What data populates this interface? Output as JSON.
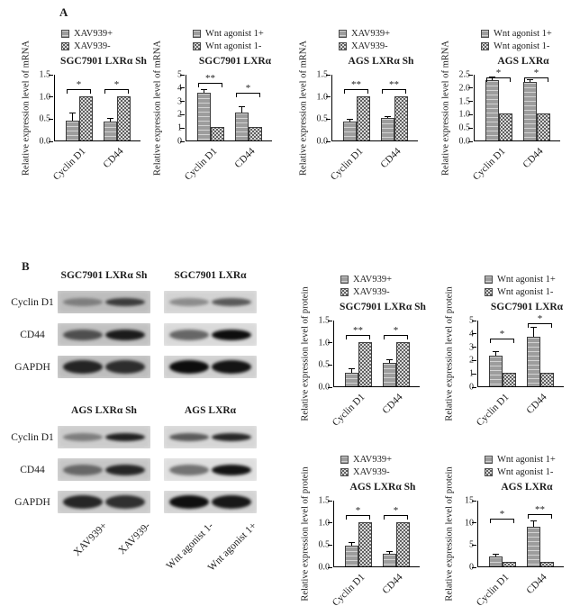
{
  "panels": {
    "a_label": "A",
    "b_label": "B"
  },
  "colors": {
    "series1_fill": "#9d9d9d",
    "series2_fill": "#e9e9e9",
    "bar_border": "#3c3c3c",
    "axis": "#000000",
    "background": "#ffffff"
  },
  "chart_data": [
    {
      "id": "a-sgc7901-sh-mrna",
      "panel": "A",
      "type": "bar",
      "title": "SGC7901 LXRα Sh",
      "ylabel": "Relative expression level of mRNA",
      "legend": [
        "XAV939+",
        "XAV939-"
      ],
      "categories": [
        "Cyclin D1",
        "CD44"
      ],
      "series": [
        {
          "name": "XAV939+",
          "values": [
            0.45,
            0.42
          ],
          "errors": [
            0.15,
            0.06
          ]
        },
        {
          "name": "XAV939-",
          "values": [
            1.0,
            1.0
          ],
          "errors": [
            0,
            0
          ]
        }
      ],
      "ticks": [
        "0.0",
        "0.5",
        "1.0",
        "1.5"
      ],
      "ylim": [
        0,
        1.5
      ],
      "significance": [
        "*",
        "*"
      ]
    },
    {
      "id": "a-sgc7901-mrna",
      "panel": "A",
      "type": "bar",
      "title": "SGC7901 LXRα",
      "ylabel": "Relative expression level of mRNA",
      "legend": [
        "Wnt agonist 1+",
        "Wnt agonist 1-"
      ],
      "categories": [
        "Cyclin D1",
        "CD44"
      ],
      "series": [
        {
          "name": "Wnt agonist 1+",
          "values": [
            3.6,
            2.1
          ],
          "errors": [
            0.2,
            0.4
          ]
        },
        {
          "name": "Wnt agonist 1-",
          "values": [
            1.0,
            1.0
          ],
          "errors": [
            0,
            0
          ]
        }
      ],
      "ticks": [
        "0",
        "1",
        "2",
        "3",
        "4",
        "5"
      ],
      "ylim": [
        0,
        5
      ],
      "significance": [
        "**",
        "*"
      ]
    },
    {
      "id": "a-ags-sh-mrna",
      "panel": "A",
      "type": "bar",
      "title": "AGS LXRα Sh",
      "ylabel": "Relative expression level of mRNA",
      "legend": [
        "XAV939+",
        "XAV939-"
      ],
      "categories": [
        "Cyclin D1",
        "CD44"
      ],
      "series": [
        {
          "name": "XAV939+",
          "values": [
            0.42,
            0.5
          ],
          "errors": [
            0.05,
            0.03
          ]
        },
        {
          "name": "XAV939-",
          "values": [
            1.0,
            1.0
          ],
          "errors": [
            0,
            0
          ]
        }
      ],
      "ticks": [
        "0.0",
        "0.5",
        "1.0",
        "1.5"
      ],
      "ylim": [
        0,
        1.5
      ],
      "significance": [
        "**",
        "**"
      ]
    },
    {
      "id": "a-ags-mrna",
      "panel": "A",
      "type": "bar",
      "title": "AGS LXRα",
      "ylabel": "Relative expression level of mRNA",
      "legend": [
        "Wnt agonist 1+",
        "Wnt agonist 1-"
      ],
      "categories": [
        "Cyclin D1",
        "CD44"
      ],
      "series": [
        {
          "name": "Wnt agonist 1+",
          "values": [
            2.25,
            2.2
          ],
          "errors": [
            0.1,
            0.05
          ]
        },
        {
          "name": "Wnt agonist 1-",
          "values": [
            1.0,
            1.0
          ],
          "errors": [
            0,
            0
          ]
        }
      ],
      "ticks": [
        "0.0",
        "0.5",
        "1.0",
        "1.5",
        "2.0",
        "2.5"
      ],
      "ylim": [
        0,
        2.5
      ],
      "significance": [
        "*",
        "*"
      ]
    },
    {
      "id": "b-sgc7901-sh-protein",
      "panel": "B",
      "type": "bar",
      "title": "SGC7901 LXRα Sh",
      "ylabel": "Relative expression level of protein",
      "legend": [
        "XAV939+",
        "XAV939-"
      ],
      "categories": [
        "Cyclin D1",
        "CD44"
      ],
      "series": [
        {
          "name": "XAV939+",
          "values": [
            0.3,
            0.53
          ],
          "errors": [
            0.08,
            0.05
          ]
        },
        {
          "name": "XAV939-",
          "values": [
            1.0,
            1.0
          ],
          "errors": [
            0,
            0
          ]
        }
      ],
      "ticks": [
        "0.0",
        "0.5",
        "1.0",
        "1.5"
      ],
      "ylim": [
        0,
        1.5
      ],
      "significance": [
        "**",
        "*"
      ]
    },
    {
      "id": "b-sgc7901-protein",
      "panel": "B",
      "type": "bar",
      "title": "SGC7901 LXRα",
      "ylabel": "Relative expression level of protein",
      "legend": [
        "Wnt agonist 1+",
        "Wnt agonist 1-"
      ],
      "categories": [
        "Cyclin D1",
        "CD44"
      ],
      "series": [
        {
          "name": "Wnt agonist 1+",
          "values": [
            2.3,
            3.7
          ],
          "errors": [
            0.3,
            0.7
          ]
        },
        {
          "name": "Wnt agonist 1-",
          "values": [
            1.0,
            1.0
          ],
          "errors": [
            0,
            0
          ]
        }
      ],
      "ticks": [
        "0",
        "1",
        "2",
        "3",
        "4",
        "5"
      ],
      "ylim": [
        0,
        5
      ],
      "significance": [
        "*",
        "*"
      ]
    },
    {
      "id": "b-ags-sh-protein",
      "panel": "B",
      "type": "bar",
      "title": "AGS LXRα Sh",
      "ylabel": "Relative expression level of protein",
      "legend": [
        "XAV939+",
        "XAV939-"
      ],
      "categories": [
        "Cyclin D1",
        "CD44"
      ],
      "series": [
        {
          "name": "XAV939+",
          "values": [
            0.47,
            0.28
          ],
          "errors": [
            0.06,
            0.05
          ]
        },
        {
          "name": "XAV939-",
          "values": [
            1.0,
            1.0
          ],
          "errors": [
            0,
            0
          ]
        }
      ],
      "ticks": [
        "0.0",
        "0.5",
        "1.0",
        "1.5"
      ],
      "ylim": [
        0,
        1.5
      ],
      "significance": [
        "*",
        "*"
      ]
    },
    {
      "id": "b-ags-protein",
      "panel": "B",
      "type": "bar",
      "title": "AGS LXRα",
      "ylabel": "Relative expression level of protein",
      "legend": [
        "Wnt agonist 1+",
        "Wnt agonist 1-"
      ],
      "categories": [
        "Cyclin D1",
        "CD44"
      ],
      "series": [
        {
          "name": "Wnt agonist 1+",
          "values": [
            2.3,
            9.0
          ],
          "errors": [
            0.3,
            1.2
          ]
        },
        {
          "name": "Wnt agonist 1-",
          "values": [
            1.0,
            1.0
          ],
          "errors": [
            0,
            0
          ]
        }
      ],
      "ticks": [
        "0",
        "5",
        "10",
        "15"
      ],
      "ylim": [
        0,
        15
      ],
      "significance": [
        "*",
        "**"
      ]
    }
  ],
  "blots": {
    "groups": [
      {
        "titles": [
          "SGC7901 LXRα Sh",
          "SGC7901 LXRα"
        ],
        "rows": [
          {
            "label": "Cyclin D1",
            "boxes": [
              {
                "bg": "#bdbdbd",
                "bands": [
                  0.35,
                  0.72
                ]
              },
              {
                "bg": "#d3d3d3",
                "bands": [
                  0.35,
                  0.6
                ]
              }
            ]
          },
          {
            "label": "CD44",
            "boxes": [
              {
                "bg": "#c0c0c0",
                "bands": [
                  0.62,
                  0.9
                ]
              },
              {
                "bg": "#d9d9d9",
                "bands": [
                  0.55,
                  0.98
                ]
              }
            ]
          },
          {
            "label": "GAPDH",
            "boxes": [
              {
                "bg": "#bdbdbd",
                "bands": [
                  0.85,
                  0.8
                ]
              },
              {
                "bg": "#cfcfcf",
                "bands": [
                  0.98,
                  0.95
                ]
              }
            ]
          }
        ]
      },
      {
        "titles": [
          "AGS LXRα Sh",
          "AGS LXRα"
        ],
        "rows": [
          {
            "label": "Cyclin D1",
            "boxes": [
              {
                "bg": "#cccccc",
                "bands": [
                  0.4,
                  0.88
                ]
              },
              {
                "bg": "#d6d6d6",
                "bands": [
                  0.6,
                  0.85
                ]
              }
            ]
          },
          {
            "label": "CD44",
            "boxes": [
              {
                "bg": "#c6c6c6",
                "bands": [
                  0.5,
                  0.85
                ]
              },
              {
                "bg": "#dedede",
                "bands": [
                  0.5,
                  0.95
                ]
              }
            ]
          },
          {
            "label": "GAPDH",
            "boxes": [
              {
                "bg": "#c9c9c9",
                "bands": [
                  0.85,
                  0.8
                ]
              },
              {
                "bg": "#d2d2d2",
                "bands": [
                  0.97,
                  0.93
                ]
              }
            ]
          }
        ]
      }
    ],
    "lane_labels": [
      "XAV939+",
      "XAV939-",
      "Wnt agonist 1-",
      "Wnt agonist 1+"
    ]
  }
}
